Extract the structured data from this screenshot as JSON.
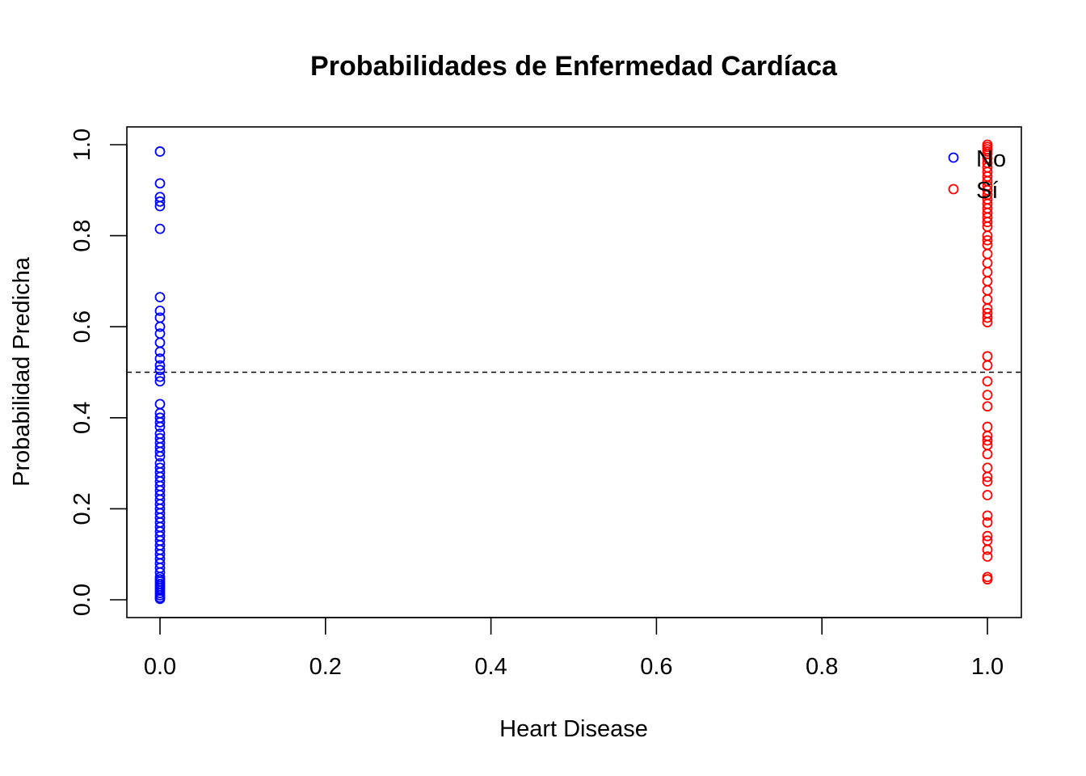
{
  "chart_data": {
    "type": "scatter",
    "title": "Probabilidades de Enfermedad Cardíaca",
    "xlabel": "Heart Disease",
    "ylabel": "Probabilidad Predicha",
    "xlim": [
      0,
      1
    ],
    "ylim": [
      0,
      1
    ],
    "x_ticks": [
      "0.0",
      "0.2",
      "0.4",
      "0.6",
      "0.8",
      "1.0"
    ],
    "y_ticks": [
      "0.0",
      "0.2",
      "0.4",
      "0.6",
      "0.8",
      "1.0"
    ],
    "reference_line": {
      "y": 0.5,
      "style": "dashed",
      "color": "#000000"
    },
    "legend": {
      "position": "top-right",
      "entries": [
        {
          "label": "No",
          "color": "#0000ff"
        },
        {
          "label": "Sí",
          "color": "#ff0000"
        }
      ]
    },
    "grid": false,
    "series": [
      {
        "name": "No",
        "color": "#0000ff",
        "marker": "open-circle",
        "x": 0,
        "y": [
          0.985,
          0.915,
          0.885,
          0.875,
          0.865,
          0.815,
          0.665,
          0.635,
          0.62,
          0.6,
          0.585,
          0.565,
          0.545,
          0.53,
          0.515,
          0.505,
          0.49,
          0.48,
          0.43,
          0.41,
          0.4,
          0.39,
          0.38,
          0.365,
          0.355,
          0.345,
          0.335,
          0.325,
          0.315,
          0.3,
          0.29,
          0.28,
          0.27,
          0.26,
          0.25,
          0.24,
          0.23,
          0.22,
          0.21,
          0.2,
          0.19,
          0.18,
          0.17,
          0.16,
          0.15,
          0.14,
          0.13,
          0.12,
          0.11,
          0.1,
          0.09,
          0.08,
          0.07,
          0.06,
          0.05,
          0.045,
          0.04,
          0.035,
          0.03,
          0.025,
          0.02,
          0.015,
          0.01,
          0.005,
          0.002
        ]
      },
      {
        "name": "Sí",
        "color": "#ff0000",
        "marker": "open-circle",
        "x": 1,
        "y": [
          1.0,
          0.995,
          0.99,
          0.985,
          0.98,
          0.97,
          0.96,
          0.95,
          0.94,
          0.93,
          0.92,
          0.91,
          0.9,
          0.89,
          0.88,
          0.87,
          0.86,
          0.85,
          0.84,
          0.83,
          0.82,
          0.8,
          0.79,
          0.78,
          0.76,
          0.74,
          0.72,
          0.7,
          0.68,
          0.66,
          0.64,
          0.63,
          0.62,
          0.61,
          0.535,
          0.515,
          0.48,
          0.45,
          0.425,
          0.38,
          0.36,
          0.35,
          0.34,
          0.32,
          0.29,
          0.27,
          0.26,
          0.23,
          0.185,
          0.17,
          0.14,
          0.13,
          0.11,
          0.095,
          0.05,
          0.045
        ]
      }
    ]
  }
}
